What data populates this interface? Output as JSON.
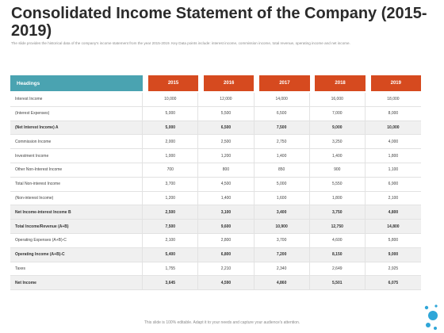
{
  "title": "Consolidated Income Statement of the Company (2015-2019)",
  "subtitle": "The slide provides the historical data of the company's income statement from the year 2015-2019. Key Data points include: interest income, commission income, total revenue, operating income and net income.",
  "table": {
    "header": "Headings",
    "years": [
      "2015",
      "2016",
      "2017",
      "2018",
      "2019"
    ],
    "rows": [
      {
        "label": "Interest Income",
        "values": [
          "10,000",
          "12,000",
          "14,000",
          "16,000",
          "18,000"
        ],
        "bold": false,
        "shade": false
      },
      {
        "label": "(Interest Expenses)",
        "values": [
          "5,000",
          "5,500",
          "6,500",
          "7,000",
          "8,000"
        ],
        "bold": false,
        "shade": false
      },
      {
        "label": "(Net Interest Income) A",
        "values": [
          "5,000",
          "6,500",
          "7,500",
          "9,000",
          "10,000"
        ],
        "bold": true,
        "shade": true
      },
      {
        "label": "Commission Income",
        "values": [
          "2,000",
          "2,500",
          "2,750",
          "3,250",
          "4,000"
        ],
        "bold": false,
        "shade": false
      },
      {
        "label": "Investment Income",
        "values": [
          "1,000",
          "1,200",
          "1,400",
          "1,400",
          "1,800"
        ],
        "bold": false,
        "shade": false
      },
      {
        "label": "Other Non-Interest Income",
        "values": [
          "700",
          "800",
          "850",
          "900",
          "1,100"
        ],
        "bold": false,
        "shade": false
      },
      {
        "label": "Total Non-interest Income",
        "values": [
          "3,700",
          "4,500",
          "5,000",
          "5,550",
          "6,900"
        ],
        "bold": false,
        "shade": false
      },
      {
        "label": "(Non-interest Income)",
        "values": [
          "1,200",
          "1,400",
          "1,600",
          "1,800",
          "2,100"
        ],
        "bold": false,
        "shade": false
      },
      {
        "label": "Net Income-interest Income B",
        "values": [
          "2,500",
          "3,100",
          "3,400",
          "3,750",
          "4,800"
        ],
        "bold": true,
        "shade": true
      },
      {
        "label": "Total Income/Revenue (A+B)",
        "values": [
          "7,500",
          "9,600",
          "10,900",
          "12,750",
          "14,800"
        ],
        "bold": true,
        "shade": true
      },
      {
        "label": "Operating Expenses (A+B)-C",
        "values": [
          "2,100",
          "2,800",
          "3,700",
          "4,600",
          "5,800"
        ],
        "bold": false,
        "shade": false
      },
      {
        "label": "Operating Income (A+B)-C",
        "values": [
          "5,400",
          "6,800",
          "7,200",
          "8,150",
          "9,000"
        ],
        "bold": true,
        "shade": true
      },
      {
        "label": "Taxes",
        "values": [
          "1,755",
          "2,210",
          "2,340",
          "2,649",
          "2,925"
        ],
        "bold": false,
        "shade": false
      },
      {
        "label": "Net Income",
        "values": [
          "3,645",
          "4,590",
          "4,860",
          "5,501",
          "6,075"
        ],
        "bold": true,
        "shade": true
      }
    ]
  },
  "footer": "This slide is 100% editable. Adapt it to your needs and capture your audience's attention.",
  "colors": {
    "header_teal": "#4aa3b1",
    "header_orange": "#d64a1f",
    "accent_blue": "#2fa6d8"
  }
}
